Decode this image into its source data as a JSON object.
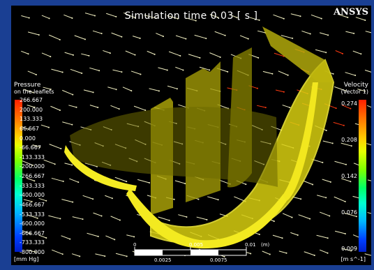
{
  "title": "Simulation time 0.03 [ s ]",
  "brand": "ANSYS",
  "pressure_legend": {
    "title": "Pressure",
    "subtitle": "on the leaflets",
    "unit": "[mm Hg]",
    "ticks": [
      "266.667",
      "200.000",
      "133.333",
      "66.667",
      "0.000",
      "-66.667",
      "-133.333",
      "-200.000",
      "-266.667",
      "-333.333",
      "-400.000",
      "-466.667",
      "-533.333",
      "-600.000",
      "-666.667",
      "-733.333",
      "-800.000"
    ]
  },
  "velocity_legend": {
    "title": "Velocity",
    "subtitle": "(Vector 1)",
    "unit": "[m s^-1]",
    "ticks": [
      "0.274",
      "0.208",
      "0.142",
      "0.076",
      "0.009"
    ]
  },
  "scale_bar": {
    "top_labels": [
      "0",
      "0.005",
      "0.01",
      "(m)"
    ],
    "bottom_labels": [
      "0.0025",
      "0.0075"
    ]
  },
  "colors": {
    "frame": "#1a3f93",
    "leaflet": "#e8e018",
    "arrow": "#f0eec0",
    "arrow_hot": "#ff3a10"
  }
}
